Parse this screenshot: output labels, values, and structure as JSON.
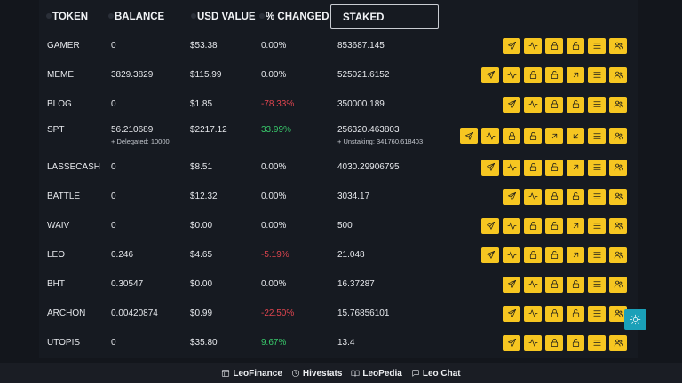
{
  "columns": {
    "token": "TOKEN",
    "balance": "BALANCE",
    "usd_value": "USD VALUE",
    "changed": "% CHANGED",
    "staked": "STAKED"
  },
  "rows": [
    {
      "token": "GAMER",
      "balance": "0",
      "balance_sub": "",
      "usd": "$53.38",
      "change": "0.00%",
      "trend": "flat",
      "staked": "853687.145",
      "staked_sub": "",
      "actions": [
        "send-icon",
        "activity-icon",
        "lock-icon",
        "unlock-icon",
        "menu-icon",
        "users-icon"
      ]
    },
    {
      "token": "MEME",
      "balance": "3829.3829",
      "balance_sub": "",
      "usd": "$115.99",
      "change": "0.00%",
      "trend": "flat",
      "staked": "525021.6152",
      "staked_sub": "",
      "actions": [
        "send-icon",
        "activity-icon",
        "lock-icon",
        "unlock-icon",
        "arrow-up-right-icon",
        "menu-icon",
        "users-icon"
      ]
    },
    {
      "token": "BLOG",
      "balance": "0",
      "balance_sub": "",
      "usd": "$1.85",
      "change": "-78.33%",
      "trend": "down",
      "staked": "350000.189",
      "staked_sub": "",
      "actions": [
        "send-icon",
        "activity-icon",
        "lock-icon",
        "unlock-icon",
        "menu-icon",
        "users-icon"
      ]
    },
    {
      "token": "SPT",
      "balance": "56.210689",
      "balance_sub": "+ Delegated: 10000",
      "usd": "$2217.12",
      "change": "33.99%",
      "trend": "up",
      "staked": "256320.463803",
      "staked_sub": "+ Unstaking: 341760.618403",
      "actions": [
        "send-icon",
        "activity-icon",
        "lock-icon",
        "unlock-icon",
        "arrow-up-right-icon",
        "arrow-down-left-icon",
        "menu-icon",
        "users-icon"
      ]
    },
    {
      "token": "LASSECASH",
      "balance": "0",
      "balance_sub": "",
      "usd": "$8.51",
      "change": "0.00%",
      "trend": "flat",
      "staked": "4030.29906795",
      "staked_sub": "",
      "actions": [
        "send-icon",
        "activity-icon",
        "lock-icon",
        "unlock-icon",
        "arrow-up-right-icon",
        "menu-icon",
        "users-icon"
      ]
    },
    {
      "token": "BATTLE",
      "balance": "0",
      "balance_sub": "",
      "usd": "$12.32",
      "change": "0.00%",
      "trend": "flat",
      "staked": "3034.17",
      "staked_sub": "",
      "actions": [
        "send-icon",
        "activity-icon",
        "lock-icon",
        "unlock-icon",
        "menu-icon",
        "users-icon"
      ]
    },
    {
      "token": "WAIV",
      "balance": "0",
      "balance_sub": "",
      "usd": "$0.00",
      "change": "0.00%",
      "trend": "flat",
      "staked": "500",
      "staked_sub": "",
      "actions": [
        "send-icon",
        "activity-icon",
        "lock-icon",
        "unlock-icon",
        "arrow-up-right-icon",
        "menu-icon",
        "users-icon"
      ]
    },
    {
      "token": "LEO",
      "balance": "0.246",
      "balance_sub": "",
      "usd": "$4.65",
      "change": "-5.19%",
      "trend": "down",
      "staked": "21.048",
      "staked_sub": "",
      "actions": [
        "send-icon",
        "activity-icon",
        "lock-icon",
        "unlock-icon",
        "arrow-up-right-icon",
        "menu-icon",
        "users-icon"
      ]
    },
    {
      "token": "BHT",
      "balance": "0.30547",
      "balance_sub": "",
      "usd": "$0.00",
      "change": "0.00%",
      "trend": "flat",
      "staked": "16.37287",
      "staked_sub": "",
      "actions": [
        "send-icon",
        "activity-icon",
        "lock-icon",
        "unlock-icon",
        "menu-icon",
        "users-icon"
      ]
    },
    {
      "token": "ARCHON",
      "balance": "0.00420874",
      "balance_sub": "",
      "usd": "$0.99",
      "change": "-22.50%",
      "trend": "down",
      "staked": "15.76856101",
      "staked_sub": "",
      "actions": [
        "send-icon",
        "activity-icon",
        "lock-icon",
        "unlock-icon",
        "menu-icon",
        "users-icon"
      ]
    },
    {
      "token": "UTOPIS",
      "balance": "0",
      "balance_sub": "",
      "usd": "$35.80",
      "change": "9.67%",
      "trend": "up",
      "staked": "13.4",
      "staked_sub": "",
      "actions": [
        "send-icon",
        "activity-icon",
        "lock-icon",
        "unlock-icon",
        "menu-icon",
        "users-icon"
      ]
    }
  ],
  "footer": {
    "links": [
      {
        "label": "LeoFinance",
        "icon": "browser-icon"
      },
      {
        "label": "Hivestats",
        "icon": "clock-icon"
      },
      {
        "label": "LeoPedia",
        "icon": "book-icon"
      },
      {
        "label": "Leo Chat",
        "icon": "chat-icon"
      }
    ]
  },
  "theme_toggle_icon": "sun-icon",
  "colors": {
    "background": "#13161c",
    "panel": "#161a21",
    "action_button": "#f6c621",
    "negative": "#e0454f",
    "positive": "#38c76a",
    "theme_toggle": "#1aa0b8"
  }
}
